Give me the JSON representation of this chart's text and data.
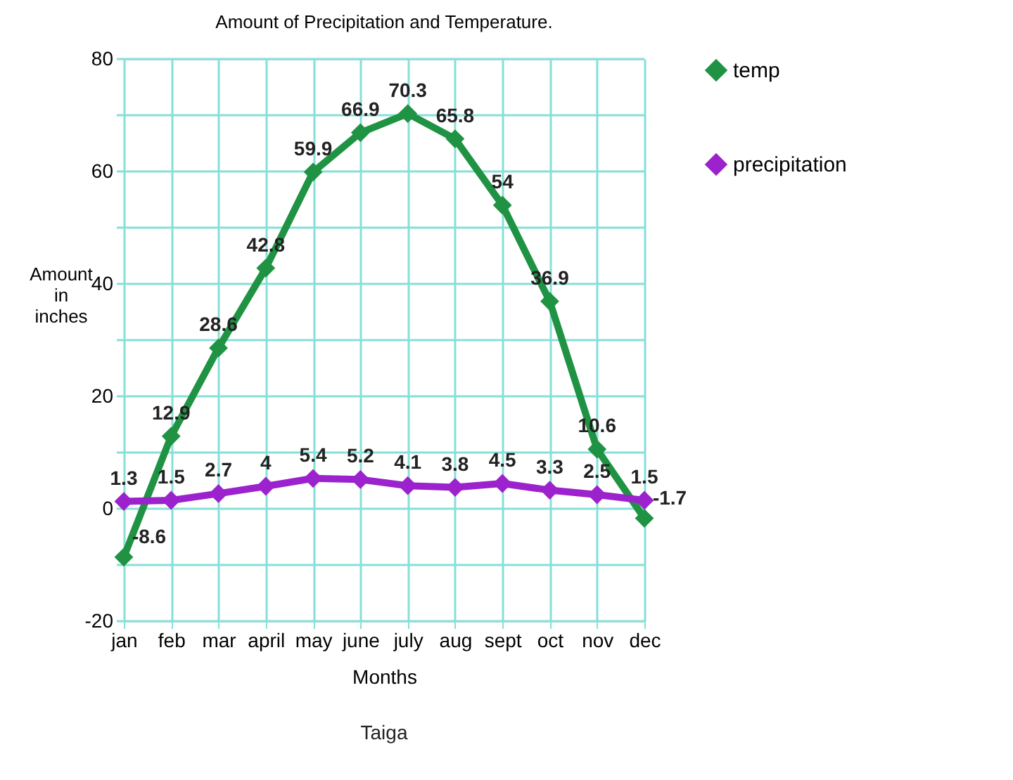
{
  "chart_data": {
    "type": "line",
    "title": "Amount of Precipitation and Temperature.",
    "xlabel": "Months",
    "ylabel": "Amount in inches",
    "categories": [
      "jan",
      "feb",
      "mar",
      "april",
      "may",
      "june",
      "july",
      "aug",
      "sept",
      "oct",
      "nov",
      "dec"
    ],
    "series": [
      {
        "name": "temp",
        "color": "#1f9343",
        "values": [
          -8.6,
          12.9,
          28.6,
          42.8,
          59.9,
          66.9,
          70.3,
          65.8,
          54,
          36.9,
          10.6,
          -1.7
        ]
      },
      {
        "name": "precipitation",
        "color": "#9b22cc",
        "values": [
          1.3,
          1.5,
          2.7,
          4,
          5.4,
          5.2,
          4.1,
          3.8,
          4.5,
          3.3,
          2.5,
          1.5
        ]
      }
    ],
    "ylim": [
      -20,
      80
    ],
    "yticks": [
      -20,
      {
        "value": -10,
        "label": null
      },
      0,
      {
        "value": 10,
        "label": null
      },
      20,
      {
        "value": 30,
        "label": null
      },
      40,
      {
        "value": 50,
        "label": null
      },
      60,
      {
        "value": 70,
        "label": null
      },
      80
    ],
    "grid": true,
    "legend": "right",
    "marker": "diamond",
    "line_style": "solid",
    "data_labels": true,
    "annotations": [
      "Taiga"
    ]
  }
}
